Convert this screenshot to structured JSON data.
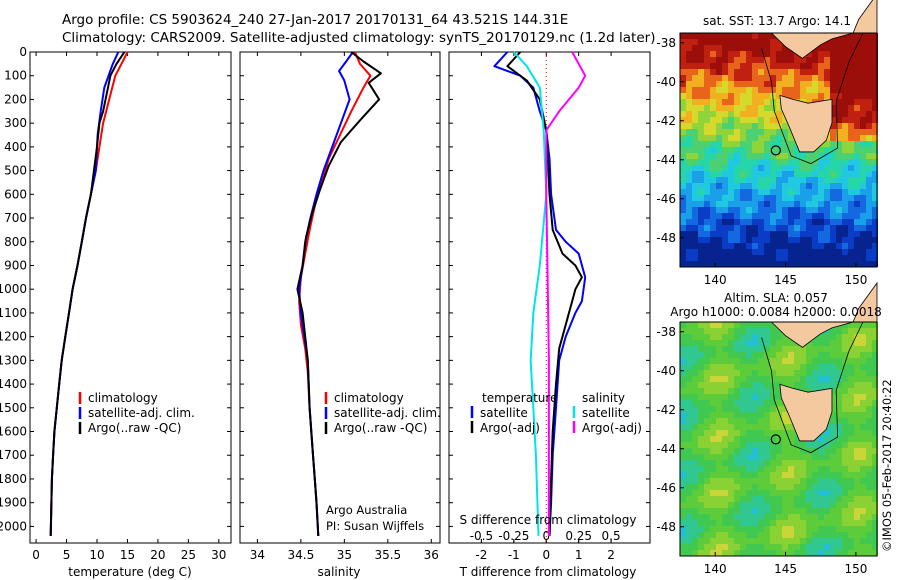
{
  "title": {
    "line1": "Argo profile: CS 5903624_240 27-Jan-2017 20170131_64 43.521S 144.31E",
    "line2": "Climatology: CARS2009. Satellite-adjusted climatology: synTS_20170129.nc (1.2d later)"
  },
  "colors": {
    "climatology": "#ff0000",
    "satellite": "#0000ff",
    "argo": "#000000",
    "salinity_satellite": "#00e5e5",
    "salinity_argo": "#ff00ff"
  },
  "depth_ticks": [
    "0",
    "100",
    "200",
    "300",
    "400",
    "500",
    "600",
    "700",
    "800",
    "900",
    "1000",
    "1100",
    "1200",
    "1300",
    "1400",
    "1500",
    "1600",
    "1700",
    "1800",
    "1900",
    "2000"
  ],
  "chart_data": [
    {
      "type": "line",
      "id": "temperature",
      "xlabel": "temperature (deg C)",
      "ylabel": "",
      "xlim": [
        -1,
        32
      ],
      "ylim": [
        2070,
        0
      ],
      "xticks": [
        0,
        5,
        10,
        15,
        20,
        25,
        30
      ],
      "xtick_labels": [
        "0",
        "5",
        "10",
        "15",
        "20",
        "25",
        "30"
      ],
      "legend": [
        "climatology",
        "satellite-adj. clim.",
        "Argo(..raw -QC)"
      ],
      "legend_position": "middle-right",
      "series": [
        {
          "name": "climatology",
          "color": "#ff0000",
          "x": [
            15.0,
            14.0,
            13.0,
            12.0,
            11.0,
            10.4,
            9.8,
            9.0,
            8.2,
            7.5,
            6.8,
            6.0,
            5.4,
            4.8,
            4.2,
            3.8,
            3.4,
            3.0,
            2.8,
            2.6,
            2.4
          ],
          "y": [
            0,
            50,
            100,
            200,
            300,
            400,
            500,
            600,
            700,
            800,
            900,
            1000,
            1100,
            1200,
            1300,
            1400,
            1500,
            1600,
            1700,
            1800,
            2040
          ]
        },
        {
          "name": "satellite-adj. clim.",
          "color": "#0000ff",
          "x": [
            13.5,
            12.6,
            11.2,
            10.6,
            10.1,
            9.8,
            9.0,
            8.2,
            7.5,
            6.8,
            6.0,
            5.4,
            4.8,
            4.2,
            3.8,
            3.4,
            3.0,
            2.8,
            2.6,
            2.4
          ],
          "y": [
            0,
            50,
            150,
            250,
            350,
            500,
            600,
            700,
            800,
            900,
            1000,
            1100,
            1200,
            1300,
            1400,
            1500,
            1600,
            1700,
            1800,
            2040
          ]
        },
        {
          "name": "Argo(..raw -QC)",
          "color": "#000000",
          "x": [
            14.5,
            13.2,
            12.2,
            11.8,
            11.0,
            10.4,
            10.0,
            9.0,
            8.2,
            7.5,
            6.8,
            6.0,
            5.4,
            4.8,
            4.2,
            3.8,
            3.4,
            3.0,
            2.8,
            2.6,
            2.4
          ],
          "y": [
            0,
            50,
            100,
            150,
            250,
            300,
            400,
            600,
            700,
            800,
            900,
            1000,
            1100,
            1200,
            1300,
            1400,
            1500,
            1600,
            1700,
            1800,
            2040
          ]
        }
      ]
    },
    {
      "type": "line",
      "id": "salinity",
      "xlabel": "salinity",
      "ylabel": "",
      "xlim": [
        33.8,
        36.1
      ],
      "ylim": [
        2070,
        0
      ],
      "xticks": [
        34,
        34.5,
        35,
        35.5,
        36
      ],
      "xtick_labels": [
        "34",
        "34.5",
        "35",
        "35.5",
        "36"
      ],
      "legend": [
        "climatology",
        "satellite-adj. clim.",
        "Argo(..raw -QC)"
      ],
      "legend_position": "middle-right",
      "annotation": [
        "Argo Australia",
        "PI: Susan Wijffels"
      ],
      "series": [
        {
          "name": "climatology",
          "color": "#ff0000",
          "x": [
            35.12,
            35.18,
            35.3,
            35.22,
            35.08,
            34.95,
            34.82,
            34.74,
            34.66,
            34.6,
            34.55,
            34.5,
            34.48,
            34.5,
            34.55,
            34.58,
            34.6,
            34.62,
            34.64,
            34.66,
            34.68,
            34.7
          ],
          "y": [
            0,
            50,
            100,
            150,
            250,
            350,
            450,
            550,
            650,
            750,
            850,
            950,
            1050,
            1150,
            1250,
            1350,
            1500,
            1600,
            1700,
            1800,
            1900,
            2040
          ]
        },
        {
          "name": "satellite-adj. clim.",
          "color": "#0000ff",
          "x": [
            35.1,
            35.02,
            34.94,
            35.0,
            35.06,
            34.96,
            34.86,
            34.76,
            34.68,
            34.61,
            34.55,
            34.52,
            34.48,
            34.5,
            34.54,
            34.58,
            34.6,
            34.62,
            34.64,
            34.66,
            34.68,
            34.7
          ],
          "y": [
            0,
            40,
            80,
            120,
            200,
            300,
            400,
            500,
            600,
            700,
            800,
            900,
            1000,
            1100,
            1200,
            1300,
            1500,
            1600,
            1700,
            1800,
            1900,
            2040
          ]
        },
        {
          "name": "Argo(..raw -QC)",
          "color": "#000000",
          "x": [
            35.08,
            35.22,
            35.42,
            35.28,
            35.4,
            35.2,
            34.96,
            34.82,
            34.72,
            34.63,
            34.56,
            34.52,
            34.46,
            34.52,
            34.55,
            34.58,
            34.6,
            34.62,
            34.64,
            34.66,
            34.68,
            34.7
          ],
          "y": [
            0,
            40,
            90,
            130,
            200,
            280,
            380,
            480,
            580,
            680,
            780,
            900,
            1000,
            1100,
            1200,
            1300,
            1500,
            1600,
            1700,
            1800,
            1900,
            2040
          ]
        }
      ]
    },
    {
      "type": "line",
      "id": "differences",
      "xlabel": "T difference from climatology",
      "xlabel_top": "S difference from climatology",
      "ylabel": "",
      "xlim": [
        -3,
        3.2
      ],
      "ylim": [
        2070,
        0
      ],
      "xticks": [
        -2,
        -1,
        0,
        1,
        2
      ],
      "xtick_labels": [
        "-2",
        "-1",
        "0",
        "1",
        "2"
      ],
      "sticks_labels": [
        "-0.5",
        "-0.25",
        "0",
        "0.25",
        "0.5"
      ],
      "legend_temperature": [
        "temperature",
        "satellite",
        "Argo(-adj)"
      ],
      "legend_salinity": [
        "salinity",
        "satellite",
        "Argo(-adj)"
      ],
      "legend_position": "middle",
      "series": [
        {
          "name": "temperature satellite",
          "color": "#0000ff",
          "x": [
            -1.2,
            -1.6,
            -0.8,
            -0.4,
            -0.2,
            0.0,
            0.1,
            0.15,
            0.3,
            0.6,
            1.0,
            1.2,
            1.1,
            0.9,
            0.6,
            0.4,
            0.3,
            0.2,
            0.15,
            0.1
          ],
          "y": [
            0,
            60,
            100,
            150,
            250,
            330,
            450,
            600,
            750,
            800,
            850,
            950,
            1050,
            1100,
            1200,
            1300,
            1500,
            1700,
            1900,
            2040
          ]
        },
        {
          "name": "temperature Argo(-adj)",
          "color": "#000000",
          "x": [
            -0.8,
            -1.2,
            -0.6,
            -0.2,
            0.0,
            0.05,
            0.1,
            0.2,
            0.5,
            0.9,
            1.1,
            0.9,
            0.8,
            0.6,
            0.4,
            0.3,
            0.2,
            0.15,
            0.1
          ],
          "y": [
            0,
            60,
            120,
            200,
            330,
            450,
            600,
            750,
            850,
            900,
            950,
            1000,
            1050,
            1150,
            1250,
            1400,
            1600,
            1800,
            2040
          ]
        },
        {
          "name": "salinity satellite",
          "color": "#00e5e5",
          "x": [
            -0.25,
            -0.15,
            -0.05,
            -0.02,
            0.0,
            -0.05,
            -0.1,
            -0.12,
            -0.08,
            -0.06
          ],
          "y": [
            0,
            60,
            150,
            330,
            600,
            900,
            1100,
            1300,
            1700,
            2040
          ]
        },
        {
          "name": "salinity Argo(-adj)",
          "color": "#ff00ff",
          "x": [
            0.2,
            0.3,
            0.25,
            0.1,
            0.0,
            0.0,
            0.02,
            0.02
          ],
          "y": [
            0,
            100,
            150,
            250,
            330,
            600,
            1300,
            2040
          ]
        }
      ]
    },
    {
      "type": "heatmap",
      "id": "sst-map",
      "title": "sat. SST: 13.7 Argo: 14.1",
      "xticks": [
        140,
        145,
        150
      ],
      "yticks": [
        -38,
        -40,
        -42,
        -44,
        -46,
        -48
      ],
      "xlim": [
        137.5,
        151.5
      ],
      "ylim": [
        -49.5,
        -37.5
      ],
      "marker": {
        "lon": 144.31,
        "lat": -43.52
      }
    },
    {
      "type": "heatmap",
      "id": "sla-map",
      "title": "Altim. SLA: 0.057",
      "subtitle": "Argo h1000: 0.0084 h2000: 0.0018",
      "xticks": [
        140,
        145,
        150
      ],
      "yticks": [
        -38,
        -40,
        -42,
        -44,
        -46,
        -48
      ],
      "xlim": [
        137.5,
        151.5
      ],
      "ylim": [
        -49.5,
        -37.5
      ],
      "marker": {
        "lon": 144.31,
        "lat": -43.52
      }
    }
  ],
  "watermark": "©IMOS 05-Feb-2017 20:40:22"
}
